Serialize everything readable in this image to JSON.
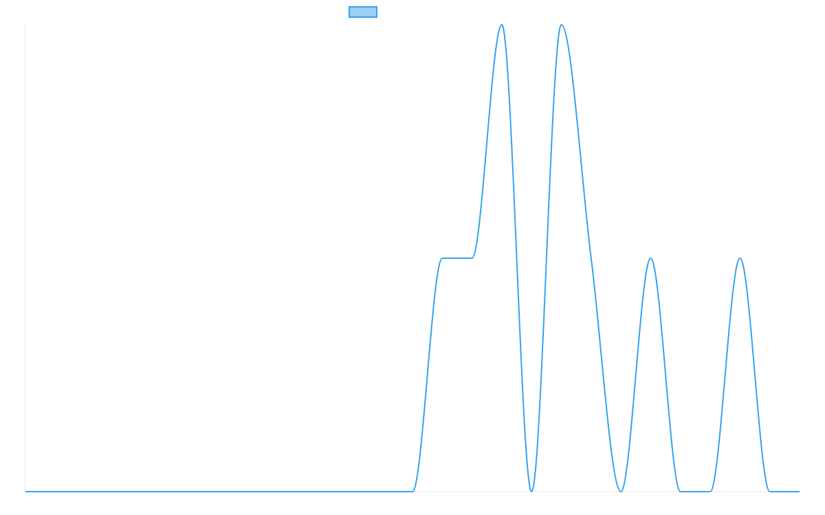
{
  "chart_data": {
    "type": "line",
    "title": "",
    "xlabel": "",
    "ylabel": "",
    "grid": false,
    "legend": "top-center",
    "x": [
      0,
      1,
      2,
      3,
      4,
      5,
      6,
      7,
      8,
      9,
      10,
      11,
      12,
      13,
      14,
      15,
      16,
      17,
      18,
      19,
      20,
      21,
      22,
      23,
      24,
      25,
      26
    ],
    "xlim": [
      0,
      26
    ],
    "ylim": [
      0,
      2
    ],
    "series": [
      {
        "name": "",
        "color": "#36a2eb",
        "fill": "#9ad0f5",
        "values": [
          0,
          0,
          0,
          0,
          0,
          0,
          0,
          0,
          0,
          0,
          0,
          0,
          0,
          0,
          1,
          1,
          2,
          0,
          2,
          1,
          0,
          1,
          0,
          0,
          1,
          0,
          0
        ]
      }
    ]
  }
}
